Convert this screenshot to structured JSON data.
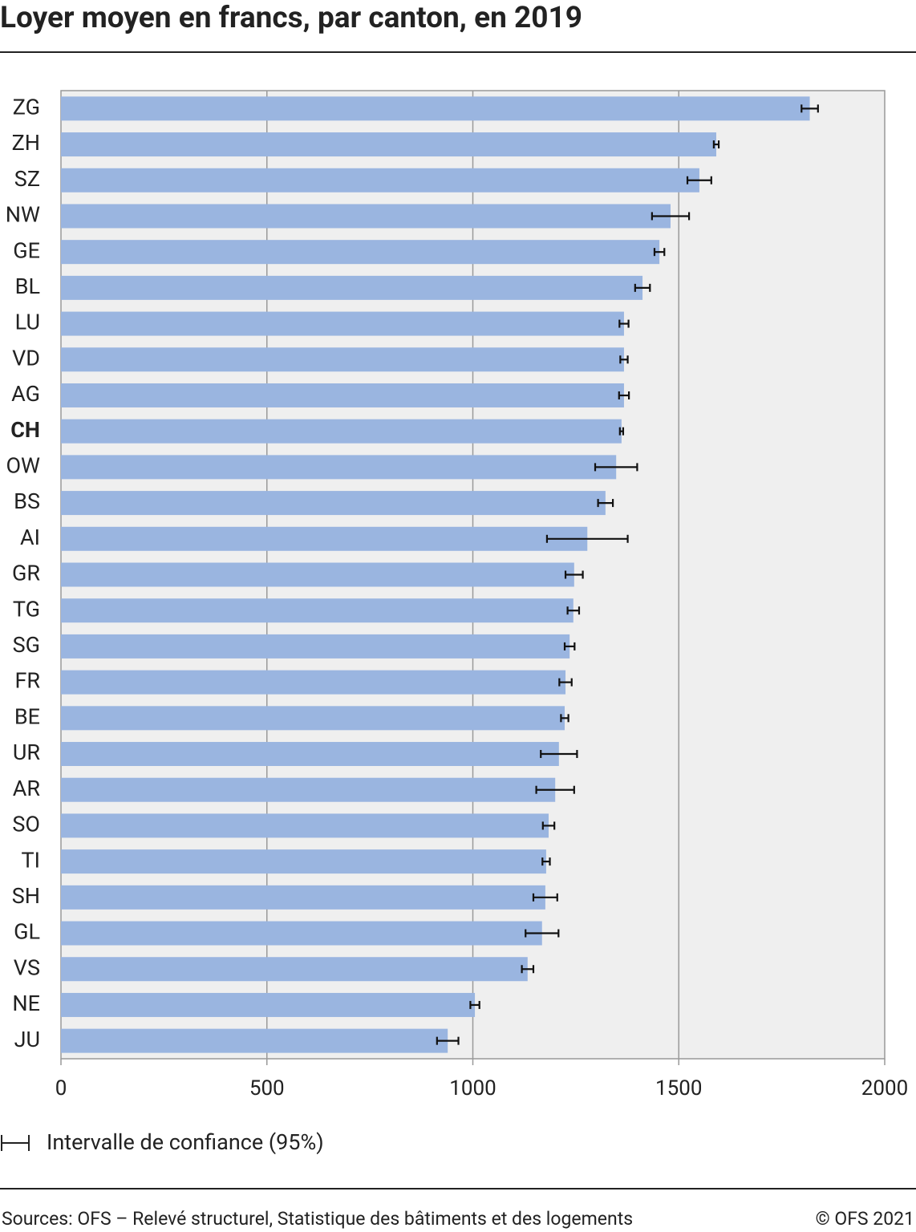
{
  "chart_data": {
    "type": "bar",
    "orientation": "horizontal",
    "title": "Loyer moyen en francs, par canton, en 2019",
    "categories": [
      "ZG",
      "ZH",
      "SZ",
      "NW",
      "GE",
      "BL",
      "LU",
      "VD",
      "AG",
      "CH",
      "OW",
      "BS",
      "AI",
      "GR",
      "TG",
      "SG",
      "FR",
      "BE",
      "UR",
      "AR",
      "SO",
      "TI",
      "SH",
      "GL",
      "VS",
      "NE",
      "JU"
    ],
    "values": [
      1818,
      1591,
      1550,
      1480,
      1453,
      1412,
      1367,
      1367,
      1367,
      1361,
      1348,
      1322,
      1278,
      1246,
      1244,
      1235,
      1225,
      1223,
      1209,
      1200,
      1184,
      1178,
      1176,
      1168,
      1133,
      1005,
      939
    ],
    "errors": [
      20,
      6,
      29,
      45,
      12,
      18,
      11,
      9,
      12,
      4,
      51,
      18,
      98,
      21,
      14,
      12,
      15,
      9,
      44,
      46,
      14,
      9,
      29,
      40,
      14,
      11,
      26
    ],
    "highlight_index": 9,
    "color": "#9ab5e0",
    "xlim": [
      0,
      2000
    ],
    "xticks": [
      0,
      500,
      1000,
      1500,
      2000
    ],
    "grid": true,
    "legend": "Intervalle de confiance (95%)",
    "source": "Sources: OFS – Relevé structurel, Statistique des bâtiments et des logements",
    "copyright": "© OFS 2021"
  }
}
